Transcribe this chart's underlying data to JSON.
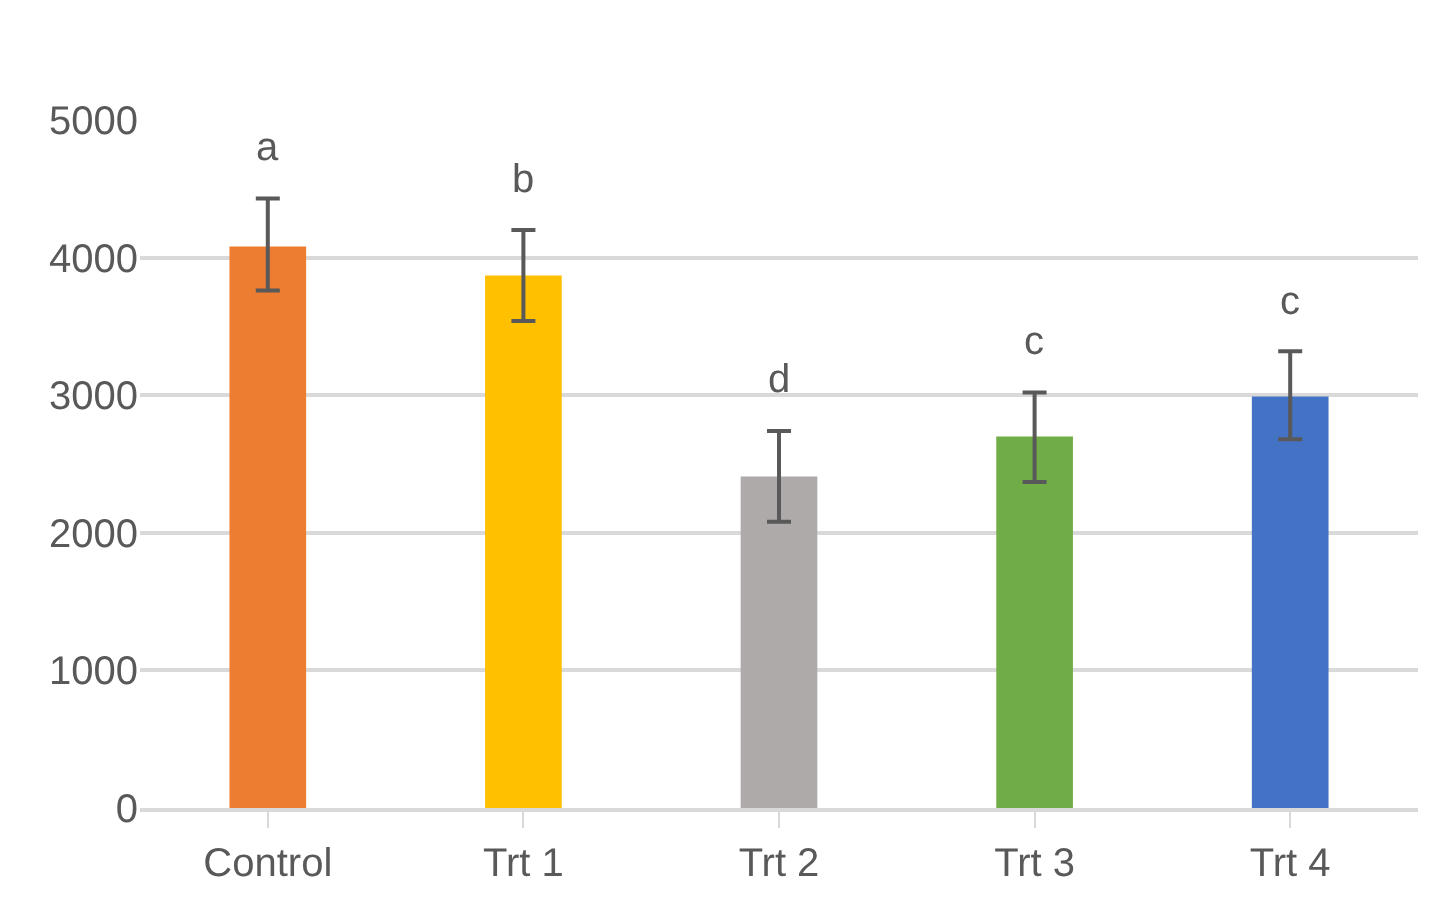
{
  "chart_data": {
    "type": "bar",
    "categories": [
      "Control",
      "Trt 1",
      "Trt 2",
      "Trt 3",
      "Trt 4"
    ],
    "values": [
      4080,
      3870,
      2410,
      2700,
      2990
    ],
    "colors": [
      "#ed7d31",
      "#ffc000",
      "#aeaaaa",
      "#70ad47",
      "#4472c4"
    ],
    "errors": [
      [
        3760,
        4430
      ],
      [
        3540,
        4200
      ],
      [
        2080,
        2740
      ],
      [
        2370,
        3020
      ],
      [
        2680,
        3320
      ]
    ],
    "annotations": [
      "a",
      "b",
      "d",
      "c",
      "c"
    ],
    "ylim": [
      0,
      5000
    ],
    "yticks": [
      0,
      1000,
      2000,
      3000,
      4000,
      5000
    ],
    "grid": "y"
  }
}
